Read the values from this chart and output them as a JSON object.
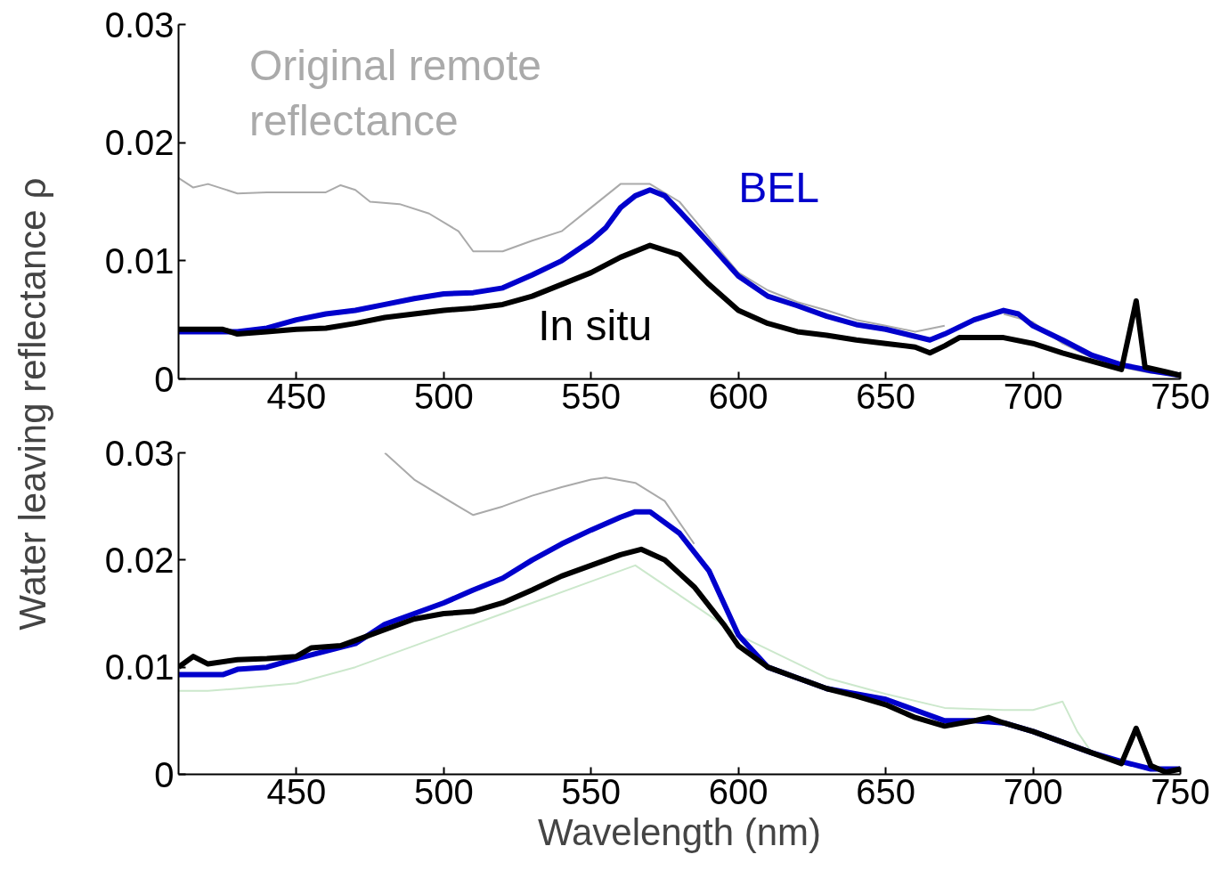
{
  "chart_data": [
    {
      "type": "line",
      "ylabel": "Water leaving reflectance ρ",
      "xlim": [
        410,
        750
      ],
      "ylim": [
        0,
        0.03
      ],
      "xticks": [
        450,
        500,
        550,
        600,
        650,
        700,
        750
      ],
      "yticks": [
        {
          "value": 0,
          "label": "0"
        },
        0.01,
        0.02,
        0.03
      ],
      "line_style": "solid",
      "series": [
        {
          "name": "Original remote reflectance",
          "color": "#aaaaaa",
          "x": [
            410,
            415,
            420,
            430,
            440,
            450,
            460,
            465,
            470,
            475,
            485,
            495,
            505,
            510,
            520,
            530,
            540,
            550,
            560,
            570,
            580,
            590,
            600,
            610,
            620,
            630,
            640,
            650,
            660,
            670,
            680,
            690,
            700,
            710,
            720,
            730,
            740,
            750
          ],
          "values": [
            0.017,
            0.0162,
            0.0165,
            0.0157,
            0.0158,
            0.0158,
            0.0158,
            0.0164,
            0.016,
            0.015,
            0.0148,
            0.014,
            0.0125,
            0.0108,
            0.0108,
            0.0117,
            0.0125,
            0.0145,
            0.0165,
            0.0165,
            0.015,
            0.012,
            0.009,
            0.0075,
            0.0065,
            0.0058,
            0.005,
            0.0045,
            0.004,
            0.0045,
            null,
            0.0055,
            0.0048,
            0.003,
            0.0018,
            0.001,
            0.0005,
            0.0003
          ]
        },
        {
          "name": "BEL",
          "color": "#0000cc",
          "x": [
            410,
            430,
            440,
            450,
            460,
            470,
            480,
            490,
            500,
            510,
            520,
            530,
            540,
            550,
            555,
            560,
            565,
            570,
            575,
            580,
            590,
            600,
            610,
            620,
            630,
            640,
            650,
            660,
            665,
            670,
            680,
            690,
            695,
            700,
            710,
            720,
            730,
            740,
            750
          ],
          "values": [
            0.004,
            0.004,
            0.0043,
            0.005,
            0.0055,
            0.0058,
            0.0063,
            0.0068,
            0.0072,
            0.0073,
            0.0077,
            0.0088,
            0.01,
            0.0117,
            0.0128,
            0.0145,
            0.0155,
            0.016,
            0.0155,
            0.0142,
            0.0115,
            0.0087,
            0.007,
            0.0062,
            0.0053,
            0.0046,
            0.0042,
            0.0036,
            0.0033,
            0.0038,
            0.005,
            0.0058,
            0.0055,
            0.0045,
            0.0033,
            0.002,
            0.0012,
            0.0007,
            0.0003
          ]
        },
        {
          "name": "In situ",
          "color": "#000000",
          "x": [
            410,
            425,
            430,
            440,
            450,
            460,
            470,
            480,
            490,
            500,
            510,
            520,
            530,
            540,
            550,
            560,
            570,
            580,
            590,
            600,
            610,
            620,
            630,
            640,
            650,
            660,
            665,
            670,
            675,
            690,
            700,
            710,
            720,
            730,
            735,
            738,
            745,
            750
          ],
          "values": [
            0.0042,
            0.0042,
            0.0038,
            0.004,
            0.0042,
            0.0043,
            0.0047,
            0.0052,
            0.0055,
            0.0058,
            0.006,
            0.0063,
            0.007,
            0.008,
            0.009,
            0.0103,
            0.0113,
            0.0105,
            0.008,
            0.0058,
            0.0047,
            0.004,
            0.0037,
            0.0033,
            0.003,
            0.0027,
            0.0022,
            0.0028,
            0.0035,
            0.0035,
            0.003,
            0.0022,
            0.0015,
            0.0008,
            0.0066,
            0.001,
            0.0006,
            0.0003
          ]
        }
      ]
    },
    {
      "type": "line",
      "xlabel": "Wavelength (nm)",
      "xlim": [
        410,
        750
      ],
      "ylim": [
        0,
        0.03
      ],
      "xticks": [
        450,
        500,
        550,
        600,
        650,
        700,
        750
      ],
      "yticks": [
        {
          "value": 0,
          "label": "0"
        },
        0.01,
        0.02,
        0.03
      ],
      "line_style": "solid",
      "series": [
        {
          "color": "#cce8cc",
          "x": [
            410,
            420,
            430,
            450,
            470,
            490,
            510,
            530,
            550,
            560,
            565,
            600,
            615,
            630,
            650,
            670,
            690,
            700,
            710,
            715,
            720
          ],
          "values": [
            0.0078,
            0.0078,
            0.008,
            0.0085,
            0.01,
            0.012,
            0.014,
            0.016,
            0.018,
            0.019,
            0.0195,
            0.013,
            0.011,
            0.009,
            0.0075,
            0.0062,
            0.006,
            0.006,
            0.0068,
            0.004,
            0.002
          ]
        },
        {
          "color": "#aaaaaa",
          "x": [
            480,
            490,
            505,
            510,
            520,
            530,
            540,
            550,
            555,
            565,
            575,
            585
          ],
          "values": [
            0.03,
            0.0275,
            0.025,
            0.0242,
            0.025,
            0.026,
            0.0268,
            0.0275,
            0.0277,
            0.0272,
            0.0255,
            0.0215
          ]
        },
        {
          "color": "#0000cc",
          "x": [
            410,
            425,
            430,
            440,
            450,
            460,
            470,
            480,
            490,
            500,
            510,
            520,
            530,
            540,
            550,
            560,
            565,
            570,
            580,
            590,
            600,
            610,
            620,
            630,
            640,
            650,
            660,
            670,
            680,
            690,
            700,
            710,
            720,
            730,
            740,
            750
          ],
          "values": [
            0.0093,
            0.0093,
            0.0098,
            0.01,
            0.0108,
            0.0115,
            0.0122,
            0.014,
            0.015,
            0.016,
            0.0172,
            0.0183,
            0.02,
            0.0215,
            0.0228,
            0.024,
            0.0245,
            0.0245,
            0.0225,
            0.019,
            0.013,
            0.01,
            0.009,
            0.008,
            0.0075,
            0.007,
            0.006,
            0.005,
            0.005,
            0.0048,
            0.004,
            0.003,
            0.002,
            0.0012,
            0.0005,
            0.0005
          ]
        },
        {
          "color": "#000000",
          "x": [
            410,
            415,
            420,
            430,
            440,
            450,
            455,
            465,
            470,
            480,
            490,
            500,
            510,
            520,
            530,
            540,
            550,
            560,
            567,
            575,
            585,
            595,
            600,
            610,
            620,
            630,
            640,
            650,
            660,
            670,
            680,
            685,
            690,
            700,
            710,
            720,
            730,
            735,
            740,
            745,
            750
          ],
          "values": [
            0.01,
            0.011,
            0.0103,
            0.0107,
            0.0108,
            0.011,
            0.0118,
            0.012,
            0.0125,
            0.0135,
            0.0145,
            0.015,
            0.0152,
            0.016,
            0.0172,
            0.0185,
            0.0195,
            0.0205,
            0.021,
            0.02,
            0.0175,
            0.014,
            0.012,
            0.01,
            0.009,
            0.008,
            0.0073,
            0.0065,
            0.0053,
            0.0045,
            0.005,
            0.0053,
            0.0048,
            0.004,
            0.003,
            0.002,
            0.001,
            0.0043,
            0.0008,
            0.0002,
            0.0005
          ]
        }
      ]
    }
  ]
}
